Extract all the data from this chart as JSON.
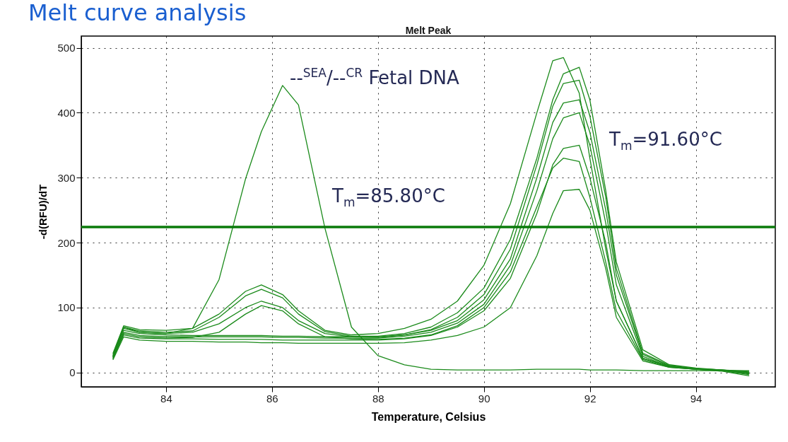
{
  "chart_data": {
    "type": "line",
    "title": "Melt curve analysis",
    "subtitle": "Melt Peak",
    "xlabel": "Temperature, Celsius",
    "ylabel": "-d(RFU)/dT",
    "x": [
      83,
      83.2,
      83.5,
      84,
      84.5,
      85,
      85.5,
      85.8,
      86.2,
      86.5,
      87,
      87.5,
      88,
      88.5,
      89,
      89.5,
      90,
      90.5,
      91,
      91.3,
      91.5,
      91.8,
      92,
      92.3,
      92.5,
      93,
      93.5,
      94,
      94.5,
      95
    ],
    "series": [
      {
        "color": "#1a8a1a",
        "values": [
          30,
          72,
          66,
          65,
          68,
          90,
          125,
          135,
          120,
          95,
          65,
          58,
          60,
          68,
          82,
          110,
          165,
          260,
          400,
          480,
          485,
          430,
          330,
          190,
          110,
          22,
          10,
          6,
          4,
          2
        ]
      },
      {
        "color": "#1a8a1a",
        "values": [
          28,
          70,
          64,
          62,
          64,
          85,
          118,
          128,
          115,
          90,
          63,
          56,
          56,
          60,
          70,
          92,
          130,
          205,
          330,
          420,
          460,
          470,
          420,
          280,
          170,
          35,
          12,
          7,
          4,
          1
        ]
      },
      {
        "color": "#1a8a1a",
        "values": [
          26,
          68,
          62,
          60,
          62,
          75,
          100,
          110,
          100,
          80,
          60,
          55,
          54,
          58,
          66,
          85,
          120,
          190,
          320,
          410,
          445,
          450,
          395,
          270,
          160,
          30,
          11,
          6,
          4,
          0
        ]
      },
      {
        "color": "#1a8a1a",
        "values": [
          25,
          65,
          60,
          58,
          57,
          57,
          57,
          57,
          56,
          56,
          55,
          55,
          55,
          58,
          65,
          80,
          112,
          175,
          300,
          385,
          415,
          420,
          370,
          250,
          150,
          28,
          10,
          6,
          3,
          0
        ]
      },
      {
        "color": "#1a8a1a",
        "values": [
          24,
          62,
          57,
          55,
          55,
          55,
          55,
          55,
          54,
          54,
          53,
          53,
          53,
          56,
          62,
          76,
          105,
          165,
          280,
          360,
          392,
          400,
          350,
          230,
          135,
          25,
          9,
          5,
          3,
          -2
        ]
      },
      {
        "color": "#1a8a1a",
        "values": [
          22,
          58,
          53,
          52,
          52,
          51,
          51,
          51,
          50,
          50,
          50,
          50,
          50,
          52,
          57,
          70,
          95,
          145,
          245,
          320,
          345,
          350,
          300,
          200,
          110,
          22,
          9,
          5,
          3,
          -3
        ]
      },
      {
        "color": "#1a8a1a",
        "values": [
          22,
          60,
          55,
          53,
          54,
          62,
          90,
          103,
          95,
          75,
          55,
          52,
          51,
          53,
          58,
          72,
          100,
          155,
          255,
          315,
          330,
          325,
          270,
          170,
          95,
          20,
          8,
          5,
          3,
          -1
        ]
      },
      {
        "color": "#1a8a1a",
        "values": [
          20,
          55,
          50,
          48,
          48,
          47,
          47,
          46,
          46,
          45,
          45,
          45,
          45,
          46,
          50,
          57,
          70,
          100,
          180,
          245,
          280,
          282,
          250,
          160,
          85,
          18,
          8,
          5,
          2,
          -5
        ]
      },
      {
        "color": "#1a8a1a",
        "values": [
          25,
          70,
          62,
          60,
          68,
          143,
          298,
          371,
          442,
          412,
          222,
          70,
          26,
          12,
          5,
          4,
          4,
          4,
          5,
          5,
          5,
          5,
          4,
          4,
          4,
          3,
          3,
          3,
          3,
          3
        ]
      }
    ],
    "xlim": [
      82.4,
      95.5
    ],
    "ylim": [
      -22,
      518
    ],
    "xticks": [
      84,
      86,
      88,
      90,
      92,
      94
    ],
    "yticks": [
      0,
      100,
      200,
      300,
      400,
      500
    ],
    "grid": true,
    "ref_lines": [
      {
        "axis": "y",
        "value": 224,
        "color": "#0a7a0a"
      }
    ],
    "annotations": [
      "--$^{SEA}$/--$^{CR}$ Fetal DNA",
      "T$_{m}$=85.80°C",
      "T$_{m}$=91.60°C"
    ]
  }
}
